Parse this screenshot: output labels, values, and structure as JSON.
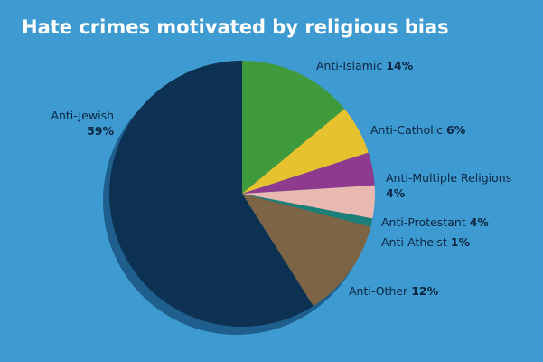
{
  "chart_data": {
    "type": "pie",
    "title": "Hate crimes motivated by religious bias",
    "categories": [
      "Anti-Islamic",
      "Anti-Catholic",
      "Anti-Multiple Religions",
      "Anti-Protestant",
      "Anti-Atheist",
      "Anti-Other",
      "Anti-Jewish"
    ],
    "values": [
      14,
      6,
      4,
      4,
      1,
      12,
      59
    ],
    "value_labels": [
      "14%",
      "6%",
      "4%",
      "4%",
      "1%",
      "12%",
      "59%"
    ],
    "colors": [
      "#3f9a3c",
      "#e6c22f",
      "#8e3b8f",
      "#e9b9b1",
      "#1b7f78",
      "#7c6445",
      "#0c3153"
    ]
  }
}
